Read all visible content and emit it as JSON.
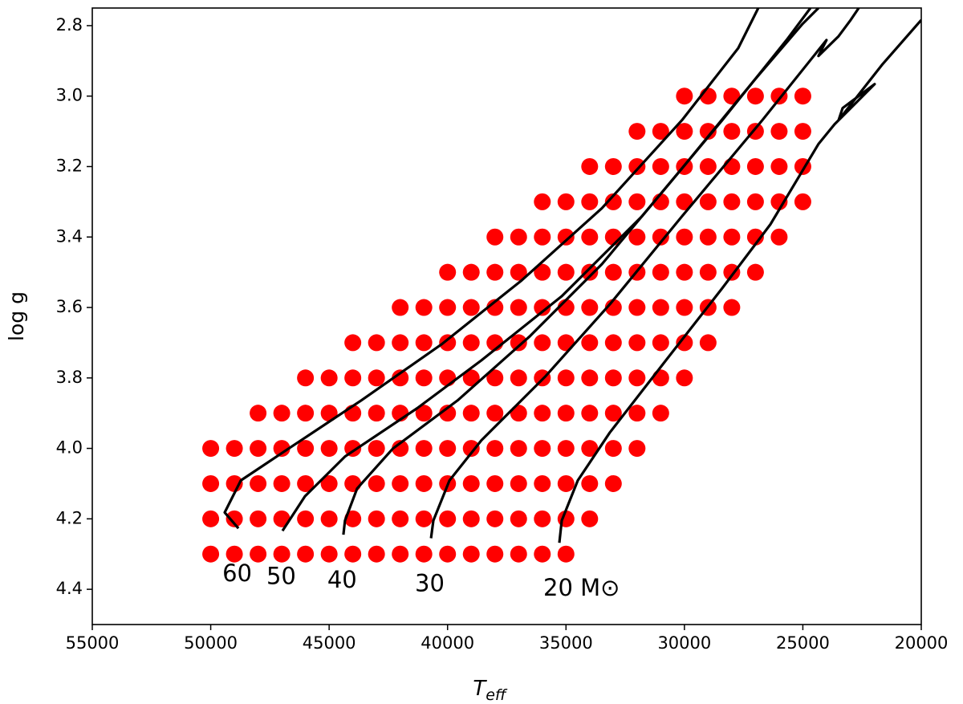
{
  "chart_data": {
    "type": "scatter",
    "xlabel": {
      "base": "T",
      "sub": "eff"
    },
    "ylabel": "log g",
    "xlim": [
      55000,
      20000
    ],
    "ylim": [
      4.5,
      2.75
    ],
    "xticks": [
      55000,
      50000,
      45000,
      40000,
      35000,
      30000,
      25000,
      20000
    ],
    "yticks": [
      2.8,
      {
        "value": 3,
        "label": "3.0"
      },
      3.2,
      3.4,
      3.6,
      3.8,
      {
        "value": 4,
        "label": "4.0"
      },
      4.2,
      4.4
    ],
    "series": [
      {
        "type": "scatter",
        "color": "#ff0000",
        "x": [
          30000,
          29000,
          28000,
          27000,
          26000,
          25000
        ],
        "y": [
          3,
          3,
          3,
          3,
          3,
          3
        ]
      },
      {
        "type": "scatter",
        "color": "#ff0000",
        "x": [
          32000,
          31000,
          30000,
          29000,
          28000,
          27000,
          26000,
          25000
        ],
        "y": [
          3.1,
          3.1,
          3.1,
          3.1,
          3.1,
          3.1,
          3.1,
          3.1
        ]
      },
      {
        "type": "scatter",
        "color": "#ff0000",
        "x": [
          34000,
          33000,
          32000,
          31000,
          30000,
          29000,
          28000,
          27000,
          26000,
          25000
        ],
        "y": [
          3.2,
          3.2,
          3.2,
          3.2,
          3.2,
          3.2,
          3.2,
          3.2,
          3.2,
          3.2
        ]
      },
      {
        "type": "scatter",
        "color": "#ff0000",
        "x": [
          36000,
          35000,
          34000,
          33000,
          32000,
          31000,
          30000,
          29000,
          28000,
          27000,
          26000,
          25000
        ],
        "y": [
          3.3,
          3.3,
          3.3,
          3.3,
          3.3,
          3.3,
          3.3,
          3.3,
          3.3,
          3.3,
          3.3,
          3.3
        ]
      },
      {
        "type": "scatter",
        "color": "#ff0000",
        "x": [
          38000,
          37000,
          36000,
          35000,
          34000,
          33000,
          32000,
          31000,
          30000,
          29000,
          28000,
          27000,
          26000
        ],
        "y": [
          3.4,
          3.4,
          3.4,
          3.4,
          3.4,
          3.4,
          3.4,
          3.4,
          3.4,
          3.4,
          3.4,
          3.4,
          3.4
        ]
      },
      {
        "type": "scatter",
        "color": "#ff0000",
        "x": [
          40000,
          39000,
          38000,
          37000,
          36000,
          35000,
          34000,
          33000,
          32000,
          31000,
          30000,
          29000,
          28000,
          27000
        ],
        "y": [
          3.5,
          3.5,
          3.5,
          3.5,
          3.5,
          3.5,
          3.5,
          3.5,
          3.5,
          3.5,
          3.5,
          3.5,
          3.5,
          3.5
        ]
      },
      {
        "type": "scatter",
        "color": "#ff0000",
        "x": [
          42000,
          41000,
          40000,
          39000,
          38000,
          37000,
          36000,
          35000,
          34000,
          33000,
          32000,
          31000,
          30000,
          29000,
          28000
        ],
        "y": [
          3.6,
          3.6,
          3.6,
          3.6,
          3.6,
          3.6,
          3.6,
          3.6,
          3.6,
          3.6,
          3.6,
          3.6,
          3.6,
          3.6,
          3.6
        ]
      },
      {
        "type": "scatter",
        "color": "#ff0000",
        "x": [
          44000,
          43000,
          42000,
          41000,
          40000,
          39000,
          38000,
          37000,
          36000,
          35000,
          34000,
          33000,
          32000,
          31000,
          30000,
          29000
        ],
        "y": [
          3.7,
          3.7,
          3.7,
          3.7,
          3.7,
          3.7,
          3.7,
          3.7,
          3.7,
          3.7,
          3.7,
          3.7,
          3.7,
          3.7,
          3.7,
          3.7
        ]
      },
      {
        "type": "scatter",
        "color": "#ff0000",
        "x": [
          46000,
          45000,
          44000,
          43000,
          42000,
          41000,
          40000,
          39000,
          38000,
          37000,
          36000,
          35000,
          34000,
          33000,
          32000,
          31000,
          30000
        ],
        "y": [
          3.8,
          3.8,
          3.8,
          3.8,
          3.8,
          3.8,
          3.8,
          3.8,
          3.8,
          3.8,
          3.8,
          3.8,
          3.8,
          3.8,
          3.8,
          3.8,
          3.8
        ]
      },
      {
        "type": "scatter",
        "color": "#ff0000",
        "x": [
          48000,
          47000,
          46000,
          45000,
          44000,
          43000,
          42000,
          41000,
          40000,
          39000,
          38000,
          37000,
          36000,
          35000,
          34000,
          33000,
          32000,
          31000
        ],
        "y": [
          3.9,
          3.9,
          3.9,
          3.9,
          3.9,
          3.9,
          3.9,
          3.9,
          3.9,
          3.9,
          3.9,
          3.9,
          3.9,
          3.9,
          3.9,
          3.9,
          3.9,
          3.9
        ]
      },
      {
        "type": "scatter",
        "color": "#ff0000",
        "x": [
          50000,
          49000,
          48000,
          47000,
          46000,
          45000,
          44000,
          43000,
          42000,
          41000,
          40000,
          39000,
          38000,
          37000,
          36000,
          35000,
          34000,
          33000,
          32000
        ],
        "y": [
          4,
          4,
          4,
          4,
          4,
          4,
          4,
          4,
          4,
          4,
          4,
          4,
          4,
          4,
          4,
          4,
          4,
          4,
          4
        ]
      },
      {
        "type": "scatter",
        "color": "#ff0000",
        "x": [
          50000,
          49000,
          48000,
          47000,
          46000,
          45000,
          44000,
          43000,
          42000,
          41000,
          40000,
          39000,
          38000,
          37000,
          36000,
          35000,
          34000,
          33000
        ],
        "y": [
          4.1,
          4.1,
          4.1,
          4.1,
          4.1,
          4.1,
          4.1,
          4.1,
          4.1,
          4.1,
          4.1,
          4.1,
          4.1,
          4.1,
          4.1,
          4.1,
          4.1,
          4.1
        ]
      },
      {
        "type": "scatter",
        "color": "#ff0000",
        "x": [
          50000,
          49000,
          48000,
          47000,
          46000,
          45000,
          44000,
          43000,
          42000,
          41000,
          40000,
          39000,
          38000,
          37000,
          36000,
          35000,
          34000
        ],
        "y": [
          4.2,
          4.2,
          4.2,
          4.2,
          4.2,
          4.2,
          4.2,
          4.2,
          4.2,
          4.2,
          4.2,
          4.2,
          4.2,
          4.2,
          4.2,
          4.2,
          4.2
        ]
      },
      {
        "type": "scatter",
        "color": "#ff0000",
        "x": [
          50000,
          49000,
          48000,
          47000,
          46000,
          45000,
          44000,
          43000,
          42000,
          41000,
          40000,
          39000,
          38000,
          37000,
          36000,
          35000
        ],
        "y": [
          4.3,
          4.3,
          4.3,
          4.3,
          4.3,
          4.3,
          4.3,
          4.3,
          4.3,
          4.3,
          4.3,
          4.3,
          4.3,
          4.3,
          4.3,
          4.3
        ]
      },
      {
        "type": "line",
        "name": "60",
        "color": "#000000",
        "x": [
          48830,
          49410,
          48730,
          46700,
          43650,
          40260,
          36870,
          33480,
          30100,
          27730,
          26880
        ],
        "y": [
          4.227,
          4.182,
          4.091,
          4.0,
          3.864,
          3.705,
          3.523,
          3.318,
          3.068,
          2.864,
          2.75
        ]
      },
      {
        "type": "line",
        "name": "50",
        "color": "#000000",
        "x": [
          46970,
          46020,
          44330,
          41280,
          38570,
          35180,
          31790,
          28400,
          25690,
          24680
        ],
        "y": [
          4.234,
          4.136,
          4.023,
          3.886,
          3.75,
          3.568,
          3.341,
          3.068,
          2.841,
          2.75
        ]
      },
      {
        "type": "line",
        "name": "40",
        "color": "#000000",
        "x": [
          44400,
          44330,
          43820,
          42300,
          39580,
          36530,
          33480,
          30100,
          27050,
          25010,
          24340
        ],
        "y": [
          4.245,
          4.205,
          4.114,
          4.0,
          3.864,
          3.682,
          3.477,
          3.205,
          2.955,
          2.795,
          2.75
        ]
      },
      {
        "type": "line",
        "name": "30",
        "color": "#000000",
        "x": [
          40700,
          40600,
          39920,
          38570,
          35860,
          33150,
          30100,
          26710,
          24000,
          24340,
          23490,
          22980,
          22640
        ],
        "y": [
          4.255,
          4.205,
          4.091,
          3.977,
          3.795,
          3.591,
          3.341,
          3.068,
          2.841,
          2.886,
          2.83,
          2.784,
          2.75
        ]
      },
      {
        "type": "line",
        "name": "20 M⊙",
        "color": "#000000",
        "x": [
          35280,
          35180,
          34500,
          33150,
          30780,
          28400,
          26370,
          24340,
          23660,
          21970,
          23320,
          23490,
          21630,
          20000
        ],
        "y": [
          4.268,
          4.205,
          4.091,
          3.955,
          3.75,
          3.545,
          3.364,
          3.136,
          3.08,
          2.966,
          3.034,
          3.068,
          2.909,
          2.784
        ]
      }
    ]
  }
}
